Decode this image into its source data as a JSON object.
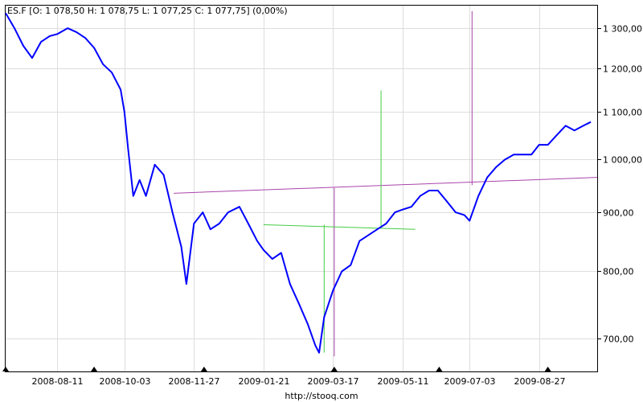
{
  "chart_data": {
    "type": "line",
    "title": "ES.F [O: 1 078,50  H: 1 078,75  L: 1 077,25  C: 1 077,75] (0,00%)",
    "footer": "http://stooq.com",
    "y_scale": "log",
    "ylim": [
      655,
      1360
    ],
    "x_range": [
      "2008-07-01",
      "2009-10-12"
    ],
    "x_ticks": [
      "2008-08-11",
      "2008-10-03",
      "2008-11-27",
      "2009-01-21",
      "2009-03-17",
      "2009-05-11",
      "2009-07-03",
      "2009-08-27"
    ],
    "y_ticks": [
      {
        "value": 700,
        "label": "700,00"
      },
      {
        "value": 800,
        "label": "800,00"
      },
      {
        "value": 900,
        "label": "900,00"
      },
      {
        "value": 1000,
        "label": "1 000,00"
      },
      {
        "value": 1100,
        "label": "1 100,00"
      },
      {
        "value": 1200,
        "label": "1 200,00"
      },
      {
        "value": 1300,
        "label": "1 300,00"
      }
    ],
    "grid": true,
    "series": [
      {
        "color": "#0000ff",
        "x": [
          "2008-07-01",
          "2008-07-08",
          "2008-07-15",
          "2008-07-22",
          "2008-07-29",
          "2008-08-05",
          "2008-08-11",
          "2008-08-19",
          "2008-08-26",
          "2008-09-02",
          "2008-09-09",
          "2008-09-16",
          "2008-09-23",
          "2008-09-30",
          "2008-10-03",
          "2008-10-06",
          "2008-10-10",
          "2008-10-15",
          "2008-10-20",
          "2008-10-27",
          "2008-11-03",
          "2008-11-10",
          "2008-11-17",
          "2008-11-21",
          "2008-11-27",
          "2008-12-04",
          "2008-12-10",
          "2008-12-17",
          "2008-12-24",
          "2009-01-02",
          "2009-01-09",
          "2009-01-16",
          "2009-01-21",
          "2009-01-28",
          "2009-02-04",
          "2009-02-11",
          "2009-02-18",
          "2009-02-25",
          "2009-03-03",
          "2009-03-06",
          "2009-03-10",
          "2009-03-17",
          "2009-03-24",
          "2009-03-31",
          "2009-04-07",
          "2009-04-14",
          "2009-04-21",
          "2009-04-28",
          "2009-05-05",
          "2009-05-11",
          "2009-05-18",
          "2009-05-25",
          "2009-06-01",
          "2009-06-08",
          "2009-06-15",
          "2009-06-22",
          "2009-06-29",
          "2009-07-03",
          "2009-07-10",
          "2009-07-17",
          "2009-07-24",
          "2009-07-31",
          "2009-08-07",
          "2009-08-14",
          "2009-08-21",
          "2009-08-27",
          "2009-09-03",
          "2009-09-10",
          "2009-09-17",
          "2009-09-24",
          "2009-10-01",
          "2009-10-07"
        ],
        "values": [
          1340,
          1300,
          1255,
          1225,
          1265,
          1280,
          1285,
          1300,
          1290,
          1275,
          1250,
          1210,
          1190,
          1150,
          1100,
          1020,
          930,
          960,
          930,
          990,
          970,
          900,
          840,
          780,
          880,
          900,
          870,
          880,
          900,
          910,
          880,
          850,
          835,
          820,
          830,
          780,
          750,
          720,
          690,
          680,
          730,
          770,
          800,
          810,
          850,
          860,
          870,
          880,
          900,
          905,
          910,
          930,
          940,
          940,
          920,
          900,
          895,
          885,
          930,
          965,
          985,
          1000,
          1010,
          1010,
          1010,
          1030,
          1030,
          1050,
          1070,
          1060,
          1070,
          1078
        ]
      }
    ],
    "overlays": [
      {
        "color": "#aa44aa",
        "x": [
          "2008-11-11",
          "2009-10-12"
        ],
        "values": [
          935,
          965
        ]
      },
      {
        "color": "#aa44aa",
        "x": [
          "2009-03-18",
          "2009-03-18"
        ],
        "values": [
          675,
          945
        ]
      },
      {
        "color": "#aa44aa",
        "x": [
          "2009-07-05",
          "2009-07-05"
        ],
        "values": [
          950,
          1345
        ]
      },
      {
        "color": "#44cc44",
        "x": [
          "2009-01-21",
          "2009-05-21"
        ],
        "values": [
          878,
          870
        ]
      },
      {
        "color": "#44cc44",
        "x": [
          "2009-03-10",
          "2009-03-10"
        ],
        "values": [
          680,
          878
        ]
      },
      {
        "color": "#44cc44",
        "x": [
          "2009-04-24",
          "2009-04-24"
        ],
        "values": [
          872,
          1148
        ]
      }
    ],
    "markers": [
      "2008-07-01",
      "2008-09-09",
      "2008-12-05",
      "2009-03-18",
      "2009-06-09",
      "2009-09-03"
    ]
  }
}
